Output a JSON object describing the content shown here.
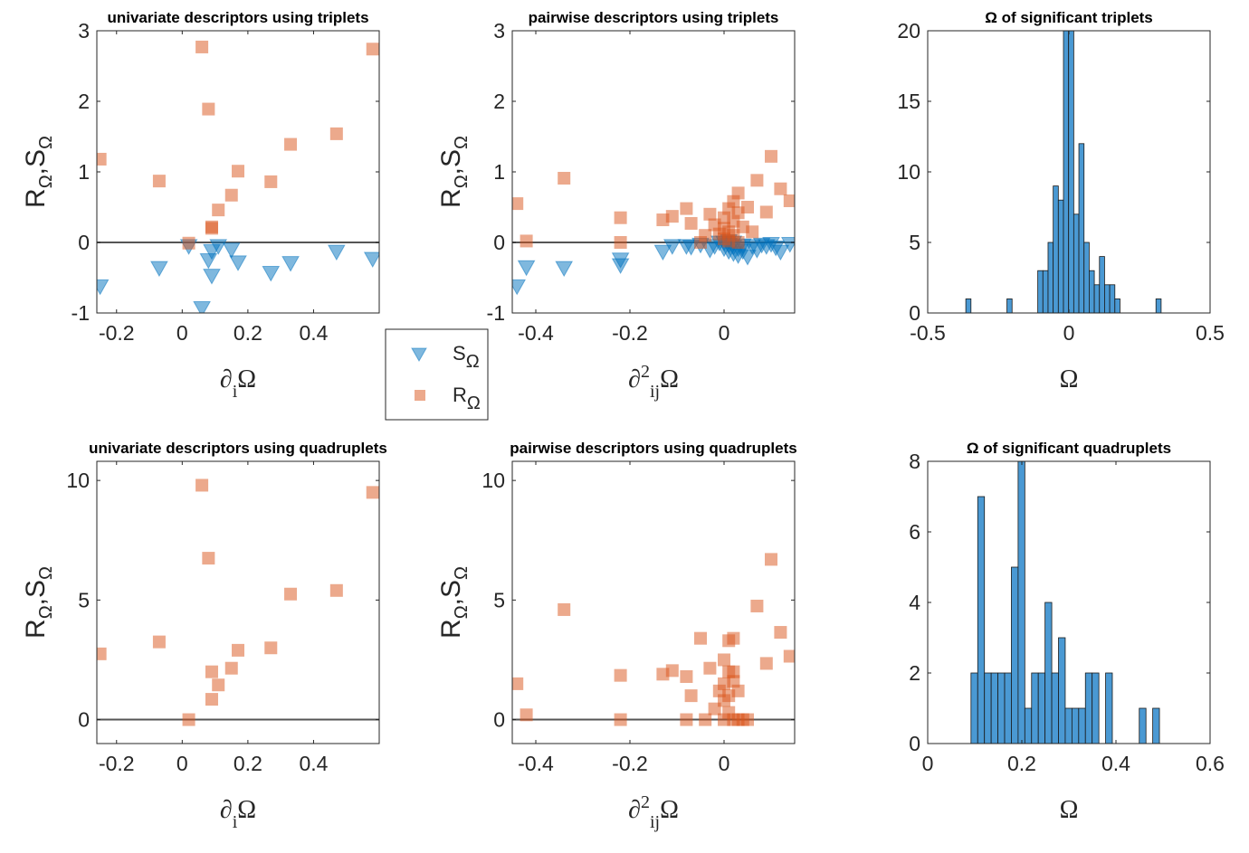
{
  "colors": {
    "S": "#0072BD",
    "R": "#D95319",
    "hist": "#4A99D3",
    "zero_line": "#555555"
  },
  "legend": {
    "s_label": "S",
    "r_label": "R",
    "sub": "Ω"
  },
  "chart_data": [
    {
      "id": "p1",
      "type": "scatter",
      "title": "univariate descriptors using triplets",
      "xlabel": "∂",
      "xlabel_sub": "i",
      "xlabel_tail": "Ω",
      "ylabel": "R,S",
      "ylabel_sub": "Ω",
      "xlim": [
        -0.26,
        0.6
      ],
      "ylim": [
        -1,
        3
      ],
      "xticks": [
        -0.2,
        0,
        0.2,
        0.4
      ],
      "xtick_labels": [
        "-0.2",
        "0",
        "0.2",
        "0.4"
      ],
      "yticks": [
        -1,
        0,
        1,
        2,
        3
      ],
      "ytick_labels": [
        "-1",
        "0",
        "1",
        "2",
        "3"
      ],
      "zero_line": true,
      "series": [
        {
          "key": "S",
          "marker": "triangle-down",
          "alpha": 0.5,
          "points": [
            [
              -0.25,
              -0.62
            ],
            [
              -0.07,
              -0.36
            ],
            [
              0.02,
              -0.05
            ],
            [
              0.06,
              -0.93
            ],
            [
              0.08,
              -0.25
            ],
            [
              0.09,
              -0.47
            ],
            [
              0.09,
              -0.12
            ],
            [
              0.11,
              -0.05
            ],
            [
              0.15,
              -0.1
            ],
            [
              0.17,
              -0.28
            ],
            [
              0.27,
              -0.43
            ],
            [
              0.33,
              -0.29
            ],
            [
              0.47,
              -0.13
            ],
            [
              0.58,
              -0.23
            ]
          ]
        },
        {
          "key": "R",
          "marker": "square",
          "alpha": 0.5,
          "points": [
            [
              -0.25,
              1.18
            ],
            [
              -0.07,
              0.87
            ],
            [
              0.02,
              -0.01
            ],
            [
              0.06,
              2.77
            ],
            [
              0.08,
              1.89
            ],
            [
              0.09,
              0.22
            ],
            [
              0.09,
              0.2
            ],
            [
              0.11,
              0.46
            ],
            [
              0.15,
              0.67
            ],
            [
              0.17,
              1.01
            ],
            [
              0.27,
              0.86
            ],
            [
              0.33,
              1.39
            ],
            [
              0.47,
              1.54
            ],
            [
              0.58,
              2.74
            ]
          ]
        }
      ]
    },
    {
      "id": "p2",
      "type": "scatter",
      "title": "pairwise descriptors using triplets",
      "xlabel": "∂",
      "xlabel_sup": "2",
      "xlabel_sub": "ij",
      "xlabel_tail": "Ω",
      "ylabel": "R,S",
      "ylabel_sub": "Ω",
      "xlim": [
        -0.45,
        0.15
      ],
      "ylim": [
        -1,
        3
      ],
      "xticks": [
        -0.4,
        -0.2,
        0
      ],
      "xtick_labels": [
        "-0.4",
        "-0.2",
        "0"
      ],
      "yticks": [
        -1,
        0,
        1,
        2,
        3
      ],
      "ytick_labels": [
        "-1",
        "0",
        "1",
        "2",
        "3"
      ],
      "zero_line": true,
      "series": [
        {
          "key": "S",
          "marker": "triangle-down",
          "alpha": 0.5,
          "points": [
            [
              -0.44,
              -0.62
            ],
            [
              -0.42,
              -0.35
            ],
            [
              -0.34,
              -0.36
            ],
            [
              -0.22,
              -0.32
            ],
            [
              -0.22,
              -0.24
            ],
            [
              -0.13,
              -0.13
            ],
            [
              -0.11,
              -0.05
            ],
            [
              -0.08,
              -0.05
            ],
            [
              -0.07,
              -0.06
            ],
            [
              -0.05,
              -0.03
            ],
            [
              -0.03,
              -0.1
            ],
            [
              -0.02,
              -0.05
            ],
            [
              -0.01,
              0.0
            ],
            [
              0.0,
              -0.08
            ],
            [
              0.0,
              0.0
            ],
            [
              0.01,
              -0.12
            ],
            [
              0.01,
              -0.03
            ],
            [
              0.01,
              0.02
            ],
            [
              0.02,
              -0.06
            ],
            [
              0.02,
              -0.15
            ],
            [
              0.02,
              0.0
            ],
            [
              0.03,
              -0.08
            ],
            [
              0.03,
              -0.18
            ],
            [
              0.04,
              -0.04
            ],
            [
              0.04,
              -0.12
            ],
            [
              0.05,
              -0.2
            ],
            [
              0.06,
              -0.05
            ],
            [
              0.07,
              -0.1
            ],
            [
              0.08,
              -0.03
            ],
            [
              0.09,
              -0.05
            ],
            [
              0.1,
              -0.02
            ],
            [
              0.11,
              -0.07
            ],
            [
              0.12,
              -0.13
            ],
            [
              0.14,
              -0.02
            ]
          ]
        },
        {
          "key": "R",
          "marker": "square",
          "alpha": 0.5,
          "points": [
            [
              -0.44,
              0.55
            ],
            [
              -0.42,
              0.02
            ],
            [
              -0.34,
              0.91
            ],
            [
              -0.22,
              0.35
            ],
            [
              -0.22,
              0.0
            ],
            [
              -0.13,
              0.32
            ],
            [
              -0.11,
              0.37
            ],
            [
              -0.08,
              0.48
            ],
            [
              -0.07,
              0.27
            ],
            [
              -0.05,
              0.0
            ],
            [
              -0.04,
              0.1
            ],
            [
              -0.03,
              0.4
            ],
            [
              -0.02,
              0.25
            ],
            [
              -0.01,
              0.12
            ],
            [
              0.0,
              0.05
            ],
            [
              0.0,
              0.35
            ],
            [
              0.0,
              0.2
            ],
            [
              0.01,
              0.48
            ],
            [
              0.01,
              0.02
            ],
            [
              0.01,
              0.15
            ],
            [
              0.02,
              0.3
            ],
            [
              0.02,
              0.58
            ],
            [
              0.02,
              0.1
            ],
            [
              0.03,
              0.7
            ],
            [
              0.03,
              0.42
            ],
            [
              0.03,
              0.0
            ],
            [
              0.04,
              0.22
            ],
            [
              0.05,
              0.5
            ],
            [
              0.06,
              0.15
            ],
            [
              0.07,
              0.88
            ],
            [
              0.09,
              0.43
            ],
            [
              0.1,
              1.22
            ],
            [
              0.12,
              0.76
            ],
            [
              0.14,
              0.59
            ]
          ]
        }
      ]
    },
    {
      "id": "p3",
      "type": "bar",
      "title": "Ω of significant triplets",
      "xlabel": "Ω",
      "xlim": [
        -0.5,
        0.5
      ],
      "ylim": [
        0,
        20
      ],
      "xticks": [
        -0.5,
        0,
        0.5
      ],
      "xtick_labels": [
        "-0.5",
        "0",
        "0.5"
      ],
      "yticks": [
        0,
        5,
        10,
        15,
        20
      ],
      "ytick_labels": [
        "0",
        "5",
        "10",
        "15",
        "20"
      ],
      "bin_start": -0.365,
      "bin_width": 0.0182,
      "values": [
        1,
        0,
        0,
        0,
        0,
        0,
        0,
        0,
        1,
        0,
        0,
        0,
        0,
        0,
        3,
        3,
        5,
        9,
        8,
        20,
        20,
        7,
        12,
        5,
        3,
        2,
        4,
        2,
        2,
        1,
        0,
        0,
        0,
        0,
        0,
        0,
        0,
        1
      ]
    },
    {
      "id": "p4",
      "type": "scatter",
      "title": "univariate descriptors using quadruplets",
      "xlabel": "∂",
      "xlabel_sub": "i",
      "xlabel_tail": "Ω",
      "ylabel": "R,S",
      "ylabel_sub": "Ω",
      "xlim": [
        -0.26,
        0.6
      ],
      "ylim": [
        -1,
        10.8
      ],
      "xticks": [
        -0.2,
        0,
        0.2,
        0.4
      ],
      "xtick_labels": [
        "-0.2",
        "0",
        "0.2",
        "0.4"
      ],
      "yticks": [
        0,
        5,
        10
      ],
      "ytick_labels": [
        "0",
        "5",
        "10"
      ],
      "zero_line": true,
      "series": [
        {
          "key": "R",
          "marker": "square",
          "alpha": 0.5,
          "points": [
            [
              -0.25,
              2.75
            ],
            [
              -0.07,
              3.25
            ],
            [
              0.02,
              0.0
            ],
            [
              0.06,
              9.8
            ],
            [
              0.08,
              6.75
            ],
            [
              0.09,
              2.0
            ],
            [
              0.09,
              0.85
            ],
            [
              0.11,
              1.45
            ],
            [
              0.15,
              2.15
            ],
            [
              0.17,
              2.9
            ],
            [
              0.27,
              3.0
            ],
            [
              0.33,
              5.25
            ],
            [
              0.47,
              5.4
            ],
            [
              0.58,
              9.5
            ]
          ]
        }
      ]
    },
    {
      "id": "p5",
      "type": "scatter",
      "title": "pairwise descriptors using quadruplets",
      "xlabel": "∂",
      "xlabel_sup": "2",
      "xlabel_sub": "ij",
      "xlabel_tail": "Ω",
      "ylabel": "R,S",
      "ylabel_sub": "Ω",
      "xlim": [
        -0.45,
        0.15
      ],
      "ylim": [
        -1,
        10.8
      ],
      "xticks": [
        -0.4,
        -0.2,
        0
      ],
      "xtick_labels": [
        "-0.4",
        "-0.2",
        "0"
      ],
      "yticks": [
        0,
        5,
        10
      ],
      "ytick_labels": [
        "0",
        "5",
        "10"
      ],
      "zero_line": true,
      "series": [
        {
          "key": "R",
          "marker": "square",
          "alpha": 0.5,
          "points": [
            [
              -0.44,
              1.5
            ],
            [
              -0.42,
              0.2
            ],
            [
              -0.34,
              4.6
            ],
            [
              -0.22,
              1.85
            ],
            [
              -0.22,
              0.0
            ],
            [
              -0.13,
              1.9
            ],
            [
              -0.11,
              2.05
            ],
            [
              -0.08,
              1.8
            ],
            [
              -0.07,
              1.0
            ],
            [
              -0.08,
              0.0
            ],
            [
              -0.05,
              3.4
            ],
            [
              -0.04,
              0.0
            ],
            [
              -0.03,
              2.15
            ],
            [
              -0.02,
              0.45
            ],
            [
              -0.01,
              1.2
            ],
            [
              0.0,
              0.0
            ],
            [
              0.0,
              0.8
            ],
            [
              0.0,
              2.5
            ],
            [
              0.0,
              1.5
            ],
            [
              0.01,
              2.0
            ],
            [
              0.01,
              0.3
            ],
            [
              0.01,
              1.0
            ],
            [
              0.01,
              3.3
            ],
            [
              0.02,
              0.0
            ],
            [
              0.02,
              1.6
            ],
            [
              0.02,
              2.0
            ],
            [
              0.02,
              3.4
            ],
            [
              0.03,
              0.0
            ],
            [
              0.03,
              1.2
            ],
            [
              0.04,
              0.0
            ],
            [
              0.05,
              0.0
            ],
            [
              0.07,
              4.75
            ],
            [
              0.09,
              2.35
            ],
            [
              0.1,
              6.7
            ],
            [
              0.12,
              3.65
            ],
            [
              0.14,
              2.65
            ]
          ]
        }
      ]
    },
    {
      "id": "p6",
      "type": "bar",
      "title": "Ω of significant quadruplets",
      "xlabel": "Ω",
      "xlim": [
        0,
        0.6
      ],
      "ylim": [
        0,
        8
      ],
      "xticks": [
        0,
        0.2,
        0.4,
        0.6
      ],
      "xtick_labels": [
        "0",
        "0.2",
        "0.4",
        "0.6"
      ],
      "yticks": [
        0,
        2,
        4,
        6,
        8
      ],
      "ytick_labels": [
        "0",
        "2",
        "4",
        "6",
        "8"
      ],
      "bin_start": 0.092,
      "bin_width": 0.0143,
      "values": [
        2,
        7,
        2,
        2,
        2,
        2,
        5,
        8,
        1,
        2,
        2,
        4,
        2,
        3,
        1,
        1,
        1,
        2,
        2,
        0,
        2,
        0,
        0,
        0,
        0,
        1,
        0,
        1
      ]
    }
  ]
}
